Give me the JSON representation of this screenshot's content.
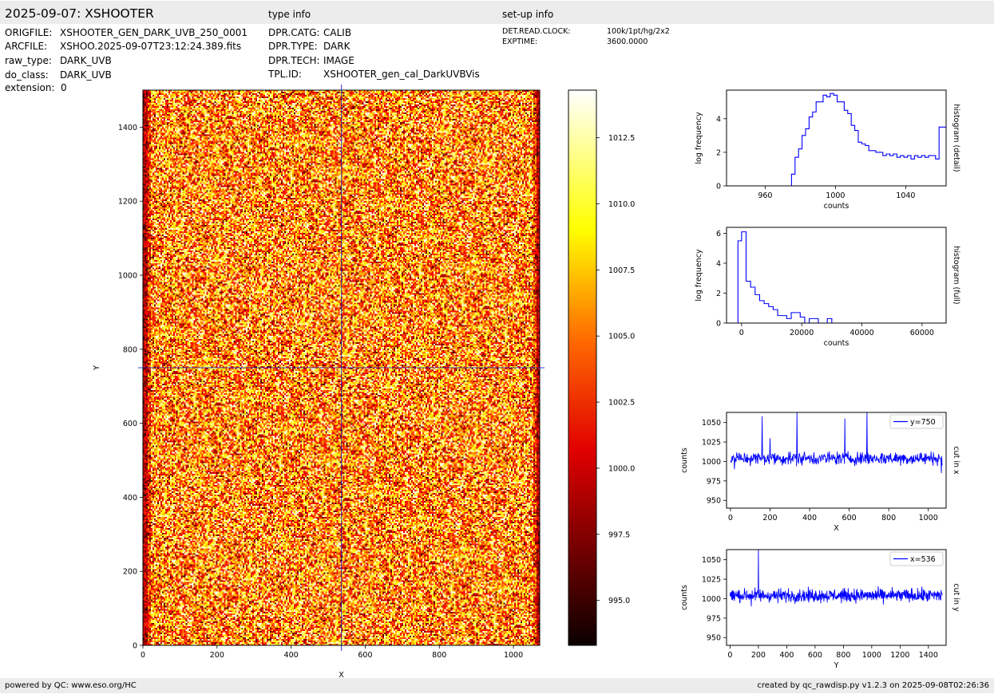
{
  "header": {
    "title": "2025-09-07: XSHOOTER",
    "type_info_heading": "type info",
    "setup_info_heading": "set-up info"
  },
  "file_info": [
    {
      "key": "ORIGFILE:",
      "value": "XSHOOTER_GEN_DARK_UVB_250_0001"
    },
    {
      "key": "ARCFILE:",
      "value": "XSHOO.2025-09-07T23:12:24.389.fits"
    },
    {
      "key": "raw_type:",
      "value": "DARK_UVB"
    },
    {
      "key": "do_class:",
      "value": "DARK_UVB"
    },
    {
      "key": "extension:",
      "value": "0"
    }
  ],
  "type_info": [
    {
      "key": "DPR.CATG:",
      "value": "CALIB"
    },
    {
      "key": "DPR.TYPE:",
      "value": "DARK"
    },
    {
      "key": "DPR.TECH:",
      "value": "IMAGE"
    },
    {
      "key": "TPL.ID:",
      "value": "XSHOOTER_gen_cal_DarkUVBVis"
    }
  ],
  "setup_info": [
    {
      "key": "DET.READ.CLOCK:",
      "value": "100k/1pt/hg/2x2"
    },
    {
      "key": "EXPTIME:",
      "value": "3600.0000"
    }
  ],
  "footer": {
    "left": "powered by QC: www.eso.org/HC",
    "right": "created by qc_rawdisp.py v1.2.3 on 2025-09-08T02:26:36"
  },
  "colors": {
    "band": "#ececec",
    "line": "#0000ff",
    "crosshair": "#0000cc"
  },
  "chart_data": [
    {
      "id": "image",
      "type": "heatmap",
      "xlabel": "X",
      "ylabel": "Y",
      "xlim": [
        0,
        1071
      ],
      "ylim": [
        0,
        1500
      ],
      "xticks": [
        0,
        200,
        400,
        600,
        800,
        1000
      ],
      "yticks": [
        0,
        200,
        400,
        600,
        800,
        1000,
        1200,
        1400
      ],
      "colormap": "hot",
      "crosshair": {
        "x": 536,
        "y": 750
      }
    },
    {
      "id": "colorbar",
      "type": "heatmap",
      "range": [
        993.3,
        1014.3
      ],
      "ticks": [
        995.0,
        997.5,
        1000.0,
        1002.5,
        1005.0,
        1007.5,
        1010.0,
        1012.5
      ],
      "tick_labels": [
        "995.0",
        "997.5",
        "1000.0",
        "1002.5",
        "1005.0",
        "1007.5",
        "1010.0",
        "1012.5"
      ]
    },
    {
      "id": "hist_detail",
      "type": "line",
      "title": "histogram (detail)",
      "xlabel": "counts",
      "ylabel": "log frequency",
      "xlim": [
        938,
        1063
      ],
      "ylim": [
        0,
        5.7
      ],
      "xticks": [
        960,
        1000,
        1040
      ],
      "yticks": [
        0,
        2,
        4
      ],
      "series": [
        {
          "step_x": [
            938,
            975,
            977,
            979,
            981,
            983,
            985,
            987,
            989,
            991,
            993,
            995,
            997,
            999,
            1001,
            1003,
            1005,
            1007,
            1009,
            1011,
            1013,
            1015,
            1017,
            1019,
            1021,
            1023,
            1025,
            1027,
            1029,
            1031,
            1033,
            1035,
            1037,
            1039,
            1041,
            1043,
            1045,
            1047,
            1049,
            1051,
            1053,
            1055,
            1057,
            1059,
            1061,
            1063
          ],
          "values": [
            0,
            0.7,
            1.7,
            2.2,
            3.0,
            3.4,
            4.1,
            4.4,
            5.0,
            5.0,
            5.4,
            5.3,
            5.5,
            5.4,
            5.0,
            5.0,
            4.5,
            4.3,
            3.6,
            3.3,
            2.6,
            2.5,
            2.4,
            2.1,
            2.1,
            2.0,
            2.0,
            1.8,
            1.9,
            1.8,
            1.9,
            1.7,
            1.8,
            1.7,
            1.8,
            1.6,
            1.8,
            1.7,
            1.8,
            1.7,
            1.8,
            1.8,
            1.6,
            3.5,
            3.5
          ]
        }
      ]
    },
    {
      "id": "hist_full",
      "type": "line",
      "title": "histogram (full)",
      "xlabel": "counts",
      "ylabel": "log frequency",
      "xlim": [
        -5000,
        68000
      ],
      "ylim": [
        0,
        6.4
      ],
      "xticks": [
        0,
        20000,
        40000,
        60000
      ],
      "xtick_labels": [
        "0",
        "20000",
        "40000",
        "60000"
      ],
      "yticks": [
        0,
        2,
        4,
        6
      ],
      "series": [
        {
          "step_x": [
            -1200,
            0,
            1500,
            3000,
            4500,
            6000,
            7500,
            9000,
            10500,
            12000,
            13500,
            15000,
            16500,
            18000,
            19500,
            21000,
            22500,
            24000,
            25500,
            27000,
            28500,
            30000,
            31500,
            68000
          ],
          "values": [
            5.5,
            6.1,
            2.8,
            2.4,
            1.9,
            1.5,
            1.3,
            1.1,
            0.9,
            0.5,
            0.5,
            0.3,
            0.7,
            0.7,
            0.4,
            0,
            0.3,
            0.3,
            0,
            0,
            0.3,
            0,
            0
          ]
        }
      ]
    },
    {
      "id": "cut_x",
      "type": "line",
      "title": "cut in x",
      "xlabel": "X",
      "ylabel": "counts",
      "xlim": [
        -20,
        1090
      ],
      "ylim": [
        940,
        1063
      ],
      "xticks": [
        0,
        200,
        400,
        600,
        800,
        1000
      ],
      "yticks": [
        950,
        975,
        1000,
        1025,
        1050
      ],
      "legend": "y=750",
      "legend_position": "top-right",
      "baseline": 1004,
      "noise": 7,
      "n_points": 1071,
      "spikes": [
        [
          160,
          1058
        ],
        [
          200,
          1030
        ],
        [
          335,
          1063
        ],
        [
          578,
          1055
        ],
        [
          690,
          1063
        ],
        [
          20,
          990
        ],
        [
          1065,
          985
        ]
      ]
    },
    {
      "id": "cut_y",
      "type": "line",
      "title": "cut in y",
      "xlabel": "Y",
      "ylabel": "counts",
      "xlim": [
        -25,
        1525
      ],
      "ylim": [
        940,
        1063
      ],
      "xticks": [
        0,
        200,
        400,
        600,
        800,
        1000,
        1200,
        1400
      ],
      "yticks": [
        950,
        975,
        1000,
        1025,
        1050
      ],
      "legend": "x=536",
      "legend_position": "top-right",
      "baseline": 1004,
      "noise": 7,
      "n_points": 1500,
      "spikes": [
        [
          200,
          1063
        ],
        [
          150,
          990
        ]
      ]
    }
  ]
}
